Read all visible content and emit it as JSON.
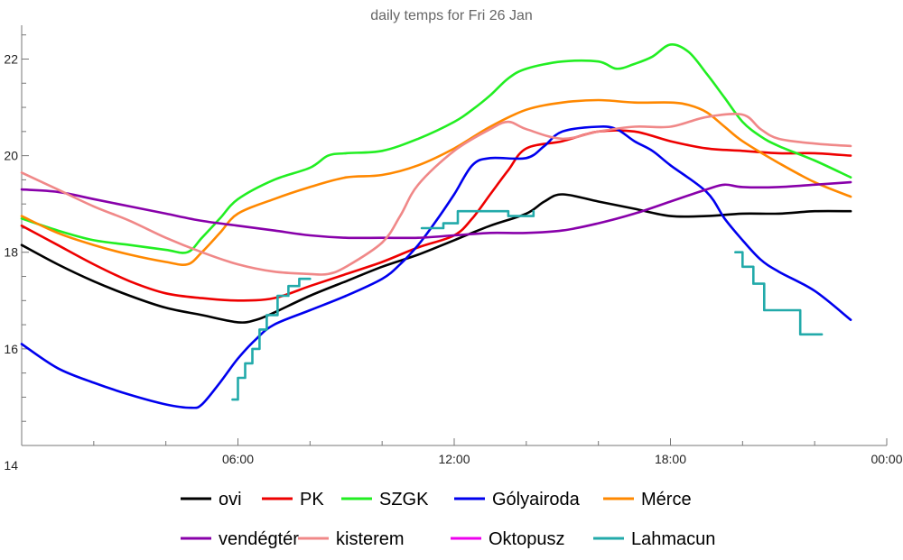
{
  "chart_data": {
    "type": "line",
    "title": "daily temps for Fri 26 Jan",
    "xlabel": "",
    "ylabel": "",
    "xlim": [
      0,
      24
    ],
    "ylim": [
      14,
      22.7
    ],
    "x_ticks": [
      {
        "value": 6,
        "label": "06:00"
      },
      {
        "value": 12,
        "label": "12:00"
      },
      {
        "value": 18,
        "label": "18:00"
      },
      {
        "value": 24,
        "label": "00:00"
      }
    ],
    "x_minor_ticks": [
      2,
      4,
      8,
      10,
      14,
      16,
      20,
      22
    ],
    "y_ticks": [
      {
        "value": 14,
        "label": "14"
      },
      {
        "value": 16,
        "label": "16"
      },
      {
        "value": 18,
        "label": "18"
      },
      {
        "value": 20,
        "label": "20"
      },
      {
        "value": 22,
        "label": "22"
      }
    ],
    "y_minor_ticks": [
      14.5,
      15,
      15.5,
      16.5,
      17,
      17.5,
      18.5,
      19,
      19.5,
      20.5,
      21,
      21.5,
      22.5
    ],
    "grid": false,
    "legend_position": "bottom",
    "series": [
      {
        "name": "ovi",
        "color": "#000000",
        "points": [
          [
            0,
            18.15
          ],
          [
            1,
            17.75
          ],
          [
            2,
            17.4
          ],
          [
            3,
            17.1
          ],
          [
            4,
            16.85
          ],
          [
            5,
            16.7
          ],
          [
            6,
            16.55
          ],
          [
            6.5,
            16.6
          ],
          [
            7,
            16.75
          ],
          [
            8,
            17.1
          ],
          [
            9,
            17.4
          ],
          [
            10,
            17.7
          ],
          [
            11,
            17.95
          ],
          [
            12,
            18.25
          ],
          [
            13,
            18.55
          ],
          [
            14,
            18.8
          ],
          [
            14.5,
            19.05
          ],
          [
            15,
            19.2
          ],
          [
            16,
            19.05
          ],
          [
            17,
            18.9
          ],
          [
            18,
            18.75
          ],
          [
            19,
            18.75
          ],
          [
            20,
            18.8
          ],
          [
            21,
            18.8
          ],
          [
            22,
            18.85
          ],
          [
            23,
            18.85
          ]
        ]
      },
      {
        "name": "PK",
        "color": "#ee0000",
        "points": [
          [
            0,
            18.55
          ],
          [
            1,
            18.15
          ],
          [
            2,
            17.75
          ],
          [
            3,
            17.4
          ],
          [
            4,
            17.15
          ],
          [
            5,
            17.05
          ],
          [
            6,
            17.0
          ],
          [
            7,
            17.05
          ],
          [
            8,
            17.3
          ],
          [
            9,
            17.55
          ],
          [
            10,
            17.8
          ],
          [
            11,
            18.1
          ],
          [
            12,
            18.35
          ],
          [
            12.5,
            18.7
          ],
          [
            13,
            19.2
          ],
          [
            13.5,
            19.7
          ],
          [
            14,
            20.15
          ],
          [
            15,
            20.3
          ],
          [
            16,
            20.5
          ],
          [
            17,
            20.5
          ],
          [
            18,
            20.3
          ],
          [
            19,
            20.15
          ],
          [
            20,
            20.1
          ],
          [
            21,
            20.05
          ],
          [
            22,
            20.05
          ],
          [
            23,
            20.0
          ]
        ]
      },
      {
        "name": "SZGK",
        "color": "#22ee22",
        "points": [
          [
            0,
            18.7
          ],
          [
            1,
            18.45
          ],
          [
            2,
            18.25
          ],
          [
            3,
            18.15
          ],
          [
            4,
            18.05
          ],
          [
            4.6,
            18.0
          ],
          [
            5,
            18.3
          ],
          [
            5.5,
            18.7
          ],
          [
            6,
            19.1
          ],
          [
            7,
            19.5
          ],
          [
            8,
            19.75
          ],
          [
            8.5,
            20.0
          ],
          [
            9,
            20.05
          ],
          [
            10,
            20.1
          ],
          [
            11,
            20.35
          ],
          [
            12,
            20.7
          ],
          [
            12.5,
            20.95
          ],
          [
            13,
            21.25
          ],
          [
            13.5,
            21.6
          ],
          [
            14,
            21.8
          ],
          [
            15,
            21.95
          ],
          [
            16,
            21.95
          ],
          [
            16.5,
            21.8
          ],
          [
            17,
            21.9
          ],
          [
            17.5,
            22.05
          ],
          [
            18,
            22.3
          ],
          [
            18.5,
            22.15
          ],
          [
            19,
            21.7
          ],
          [
            19.5,
            21.2
          ],
          [
            20,
            20.7
          ],
          [
            20.5,
            20.4
          ],
          [
            21,
            20.2
          ],
          [
            22,
            19.9
          ],
          [
            23,
            19.55
          ]
        ]
      },
      {
        "name": "Gólyairoda",
        "color": "#0000ee",
        "points": [
          [
            0,
            16.1
          ],
          [
            1,
            15.6
          ],
          [
            2,
            15.3
          ],
          [
            3,
            15.05
          ],
          [
            4,
            14.85
          ],
          [
            4.7,
            14.78
          ],
          [
            5,
            14.85
          ],
          [
            5.5,
            15.3
          ],
          [
            6,
            15.8
          ],
          [
            6.5,
            16.2
          ],
          [
            7,
            16.5
          ],
          [
            8,
            16.8
          ],
          [
            9,
            17.1
          ],
          [
            10,
            17.45
          ],
          [
            10.5,
            17.75
          ],
          [
            11,
            18.15
          ],
          [
            11.5,
            18.65
          ],
          [
            12,
            19.2
          ],
          [
            12.5,
            19.8
          ],
          [
            13,
            19.95
          ],
          [
            14,
            19.95
          ],
          [
            14.5,
            20.2
          ],
          [
            15,
            20.5
          ],
          [
            16,
            20.6
          ],
          [
            16.5,
            20.55
          ],
          [
            17,
            20.3
          ],
          [
            17.5,
            20.1
          ],
          [
            18,
            19.8
          ],
          [
            19,
            19.25
          ],
          [
            19.5,
            18.7
          ],
          [
            20,
            18.25
          ],
          [
            20.5,
            17.85
          ],
          [
            21,
            17.6
          ],
          [
            22,
            17.2
          ],
          [
            23,
            16.6
          ]
        ]
      },
      {
        "name": "Mérce",
        "color": "#ff8800",
        "points": [
          [
            0,
            18.75
          ],
          [
            1,
            18.4
          ],
          [
            2,
            18.15
          ],
          [
            3,
            17.95
          ],
          [
            4,
            17.8
          ],
          [
            4.6,
            17.75
          ],
          [
            5,
            18.0
          ],
          [
            5.5,
            18.4
          ],
          [
            6,
            18.8
          ],
          [
            7,
            19.1
          ],
          [
            8,
            19.35
          ],
          [
            9,
            19.55
          ],
          [
            10,
            19.6
          ],
          [
            11,
            19.8
          ],
          [
            12,
            20.15
          ],
          [
            13,
            20.6
          ],
          [
            14,
            20.95
          ],
          [
            15,
            21.1
          ],
          [
            16,
            21.15
          ],
          [
            17,
            21.1
          ],
          [
            18,
            21.1
          ],
          [
            18.5,
            21.05
          ],
          [
            19,
            20.9
          ],
          [
            19.5,
            20.6
          ],
          [
            20,
            20.3
          ],
          [
            21,
            19.85
          ],
          [
            22,
            19.45
          ],
          [
            23,
            19.15
          ]
        ]
      },
      {
        "name": "vendégtér",
        "color": "#8800aa",
        "points": [
          [
            0,
            19.3
          ],
          [
            1,
            19.25
          ],
          [
            2,
            19.1
          ],
          [
            3,
            18.95
          ],
          [
            4,
            18.8
          ],
          [
            5,
            18.65
          ],
          [
            6,
            18.55
          ],
          [
            7,
            18.45
          ],
          [
            8,
            18.35
          ],
          [
            9,
            18.3
          ],
          [
            10,
            18.3
          ],
          [
            11,
            18.3
          ],
          [
            12,
            18.35
          ],
          [
            13,
            18.4
          ],
          [
            14,
            18.4
          ],
          [
            15,
            18.45
          ],
          [
            16,
            18.6
          ],
          [
            17,
            18.8
          ],
          [
            18,
            19.05
          ],
          [
            19,
            19.3
          ],
          [
            19.5,
            19.4
          ],
          [
            20,
            19.35
          ],
          [
            21,
            19.35
          ],
          [
            22,
            19.4
          ],
          [
            23,
            19.45
          ]
        ]
      },
      {
        "name": "kisterem",
        "color": "#f08888",
        "points": [
          [
            0,
            19.65
          ],
          [
            1,
            19.3
          ],
          [
            2,
            18.95
          ],
          [
            3,
            18.65
          ],
          [
            4,
            18.3
          ],
          [
            5,
            18.0
          ],
          [
            6,
            17.75
          ],
          [
            7,
            17.6
          ],
          [
            8,
            17.55
          ],
          [
            8.5,
            17.55
          ],
          [
            9,
            17.7
          ],
          [
            10,
            18.2
          ],
          [
            10.5,
            18.75
          ],
          [
            11,
            19.4
          ],
          [
            12,
            20.1
          ],
          [
            13,
            20.55
          ],
          [
            13.5,
            20.7
          ],
          [
            14,
            20.55
          ],
          [
            15,
            20.35
          ],
          [
            16,
            20.5
          ],
          [
            17,
            20.6
          ],
          [
            18,
            20.6
          ],
          [
            19,
            20.8
          ],
          [
            20,
            20.85
          ],
          [
            20.5,
            20.55
          ],
          [
            21,
            20.35
          ],
          [
            22,
            20.25
          ],
          [
            23,
            20.2
          ]
        ]
      },
      {
        "name": "Oktopusz",
        "color": "#ee00ee",
        "points": []
      },
      {
        "name": "Lahmacun",
        "color": "#22aaaa",
        "step": true,
        "segments": [
          [
            [
              5.85,
              14.95
            ],
            [
              6.0,
              15.4
            ],
            [
              6.2,
              15.7
            ],
            [
              6.4,
              16.0
            ],
            [
              6.6,
              16.4
            ],
            [
              6.8,
              16.7
            ],
            [
              7.1,
              17.1
            ],
            [
              7.4,
              17.3
            ],
            [
              7.7,
              17.45
            ],
            [
              8.0,
              17.45
            ]
          ],
          [
            [
              11.1,
              18.5
            ],
            [
              11.7,
              18.6
            ],
            [
              12.1,
              18.85
            ],
            [
              13.5,
              18.75
            ],
            [
              14.2,
              18.85
            ]
          ],
          [
            [
              19.8,
              18.0
            ],
            [
              20.0,
              17.7
            ],
            [
              20.3,
              17.35
            ],
            [
              20.6,
              16.8
            ],
            [
              21.6,
              16.3
            ],
            [
              22.2,
              16.3
            ]
          ]
        ]
      }
    ]
  }
}
